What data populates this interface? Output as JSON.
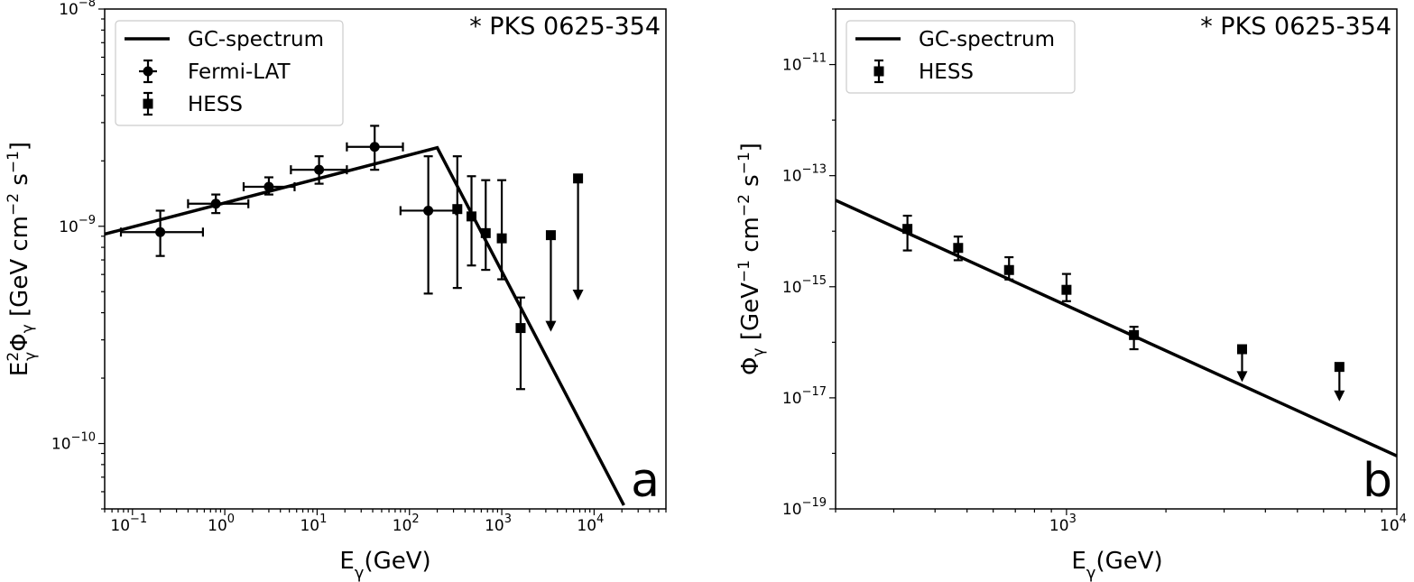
{
  "chart_data": [
    {
      "panel_id": "a",
      "type": "scatter",
      "source_label": "* PKS 0625-354",
      "xlabel": "E_γ(GeV)",
      "ylabel": "E²_γΦ_γ [GeV cm⁻² s⁻¹]",
      "xscale": "log",
      "yscale": "log",
      "xlim": [
        0.05,
        60000
      ],
      "ylim": [
        5e-11,
        1e-08
      ],
      "xticks": [
        {
          "value": 0.1,
          "base": "10",
          "exp": "−1"
        },
        {
          "value": 1,
          "base": "10",
          "exp": "0"
        },
        {
          "value": 10,
          "base": "10",
          "exp": "1"
        },
        {
          "value": 100,
          "base": "10",
          "exp": "2"
        },
        {
          "value": 1000,
          "base": "10",
          "exp": "3"
        },
        {
          "value": 10000,
          "base": "10",
          "exp": "4"
        }
      ],
      "yticks": [
        {
          "value": 1e-10,
          "base": "10",
          "exp": "−10"
        },
        {
          "value": 1e-09,
          "base": "10",
          "exp": "−9"
        },
        {
          "value": 1e-08,
          "base": "10",
          "exp": "−8"
        }
      ],
      "legend_location": "upper-left",
      "legend": [
        {
          "label": "GC-spectrum",
          "marker": "line"
        },
        {
          "label": "Fermi-LAT",
          "marker": "circle-errorbar"
        },
        {
          "label": "HESS",
          "marker": "square-errorbar"
        }
      ],
      "series": [
        {
          "name": "GC-spectrum",
          "kind": "line",
          "x": [
            0.05,
            200,
            21000
          ],
          "y": [
            9.2e-10,
            2.3e-09,
            5.2e-11
          ]
        },
        {
          "name": "Fermi-LAT",
          "kind": "points",
          "marker": "circle",
          "points": [
            {
              "x": 0.2,
              "y": 9.4e-10,
              "xlo": 0.075,
              "xhi": 0.58,
              "ylo": 7.3e-10,
              "yhi": 1.18e-09
            },
            {
              "x": 0.8,
              "y": 1.27e-09,
              "xlo": 0.4,
              "xhi": 1.8,
              "ylo": 1.15e-09,
              "yhi": 1.4e-09
            },
            {
              "x": 3.0,
              "y": 1.52e-09,
              "xlo": 1.6,
              "xhi": 5.7,
              "ylo": 1.4e-09,
              "yhi": 1.68e-09
            },
            {
              "x": 10.5,
              "y": 1.82e-09,
              "xlo": 5.2,
              "xhi": 21,
              "ylo": 1.57e-09,
              "yhi": 2.1e-09
            },
            {
              "x": 42,
              "y": 2.32e-09,
              "xlo": 21,
              "xhi": 85,
              "ylo": 1.82e-09,
              "yhi": 2.9e-09
            },
            {
              "x": 160,
              "y": 1.18e-09,
              "xlo": 80,
              "xhi": 320,
              "ylo": 4.9e-10,
              "yhi": 2.1e-09
            }
          ]
        },
        {
          "name": "HESS",
          "kind": "points",
          "marker": "square",
          "points": [
            {
              "x": 330,
              "y": 1.2e-09,
              "ylo": 5.2e-10,
              "yhi": 2.1e-09
            },
            {
              "x": 470,
              "y": 1.11e-09,
              "ylo": 6.6e-10,
              "yhi": 1.7e-09
            },
            {
              "x": 670,
              "y": 9.3e-10,
              "ylo": 6.3e-10,
              "yhi": 1.63e-09
            },
            {
              "x": 1000,
              "y": 8.8e-10,
              "ylo": 5.7e-10,
              "yhi": 1.63e-09
            },
            {
              "x": 1600,
              "y": 3.4e-10,
              "ylo": 1.78e-10,
              "yhi": 4.7e-10
            },
            {
              "x": 3400,
              "y": 9.1e-10,
              "upper_limit": true,
              "arrow_to": 3.3e-10
            },
            {
              "x": 6700,
              "y": 1.66e-09,
              "upper_limit": true,
              "arrow_to": 4.6e-10
            }
          ]
        }
      ]
    },
    {
      "panel_id": "b",
      "type": "scatter",
      "source_label": "* PKS 0625-354",
      "xlabel": "E_γ(GeV)",
      "ylabel": "Φ_γ [GeV⁻¹ cm⁻² s⁻¹]",
      "xscale": "log",
      "yscale": "log",
      "xlim": [
        200,
        10000
      ],
      "ylim": [
        1e-19,
        1e-10
      ],
      "xticks": [
        {
          "value": 1000,
          "base": "10",
          "exp": "3"
        },
        {
          "value": 10000,
          "base": "10",
          "exp": "4"
        }
      ],
      "yticks": [
        {
          "value": 1e-19,
          "base": "10",
          "exp": "−19"
        },
        {
          "value": 1e-17,
          "base": "10",
          "exp": "−17"
        },
        {
          "value": 1e-15,
          "base": "10",
          "exp": "−15"
        },
        {
          "value": 1e-13,
          "base": "10",
          "exp": "−13"
        },
        {
          "value": 1e-11,
          "base": "10",
          "exp": "−11"
        }
      ],
      "legend_location": "upper-left",
      "legend": [
        {
          "label": "GC-spectrum",
          "marker": "line"
        },
        {
          "label": "HESS",
          "marker": "square-errorbar"
        }
      ],
      "series": [
        {
          "name": "GC-spectrum",
          "kind": "line",
          "x": [
            200,
            10000
          ],
          "y": [
            3.6e-14,
            9e-19
          ]
        },
        {
          "name": "HESS",
          "kind": "points",
          "marker": "square",
          "points": [
            {
              "x": 330,
              "y": 1.1e-14,
              "ylo": 4.5e-15,
              "yhi": 1.9e-14
            },
            {
              "x": 470,
              "y": 5e-15,
              "ylo": 3e-15,
              "yhi": 8e-15
            },
            {
              "x": 670,
              "y": 2e-15,
              "ylo": 1.35e-15,
              "yhi": 3.4e-15
            },
            {
              "x": 1000,
              "y": 8.8e-16,
              "ylo": 5.5e-16,
              "yhi": 1.7e-15
            },
            {
              "x": 1600,
              "y": 1.35e-16,
              "ylo": 7.5e-17,
              "yhi": 1.9e-16
            },
            {
              "x": 3400,
              "y": 7.5e-17,
              "upper_limit": true,
              "arrow_to": 2e-17
            },
            {
              "x": 6700,
              "y": 3.6e-17,
              "upper_limit": true,
              "arrow_to": 9e-18
            }
          ]
        }
      ]
    }
  ]
}
